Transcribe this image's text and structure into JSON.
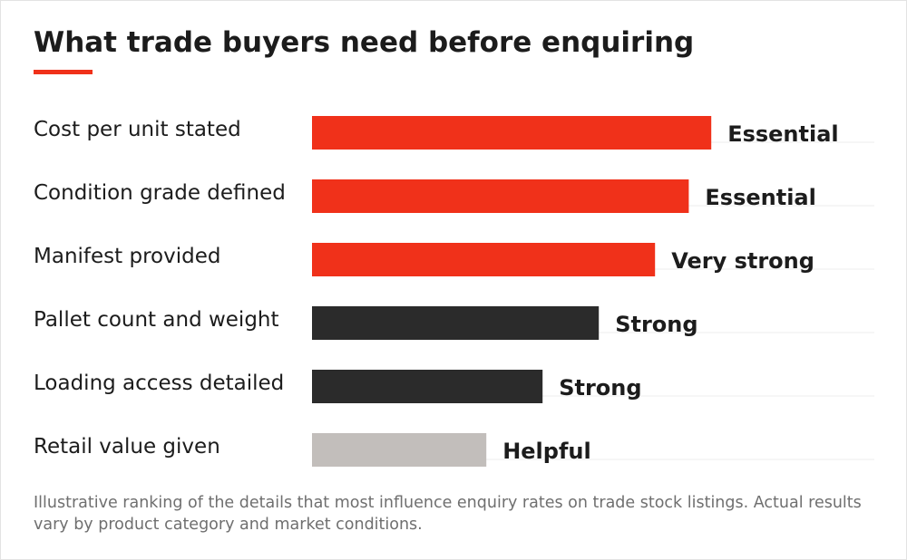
{
  "title": "What trade buyers need before enquiring",
  "footnote": "Illustrative ranking of the details that most influence enquiry rates on trade stock listings. Actual results vary by product category and market conditions.",
  "colors": {
    "accent": "#f0311a",
    "dark": "#2b2b2b",
    "light": "#c2bebb",
    "text": "#1c1c1c",
    "gridline": "#eeeeee"
  },
  "chart_data": {
    "type": "bar",
    "orientation": "horizontal",
    "title": "What trade buyers need before enquiring",
    "xlim": [
      0,
      100
    ],
    "grid": false,
    "categories": [
      "Cost per unit stated",
      "Condition grade defined",
      "Manifest provided",
      "Pallet count and weight",
      "Loading access detailed",
      "Retail value given"
    ],
    "values": [
      71,
      67,
      61,
      51,
      41,
      31
    ],
    "value_labels": [
      "Essential",
      "Essential",
      "Very strong",
      "Strong",
      "Strong",
      "Helpful"
    ],
    "bar_colors": [
      "#f0311a",
      "#f0311a",
      "#f0311a",
      "#2b2b2b",
      "#2b2b2b",
      "#c2bebb"
    ]
  }
}
